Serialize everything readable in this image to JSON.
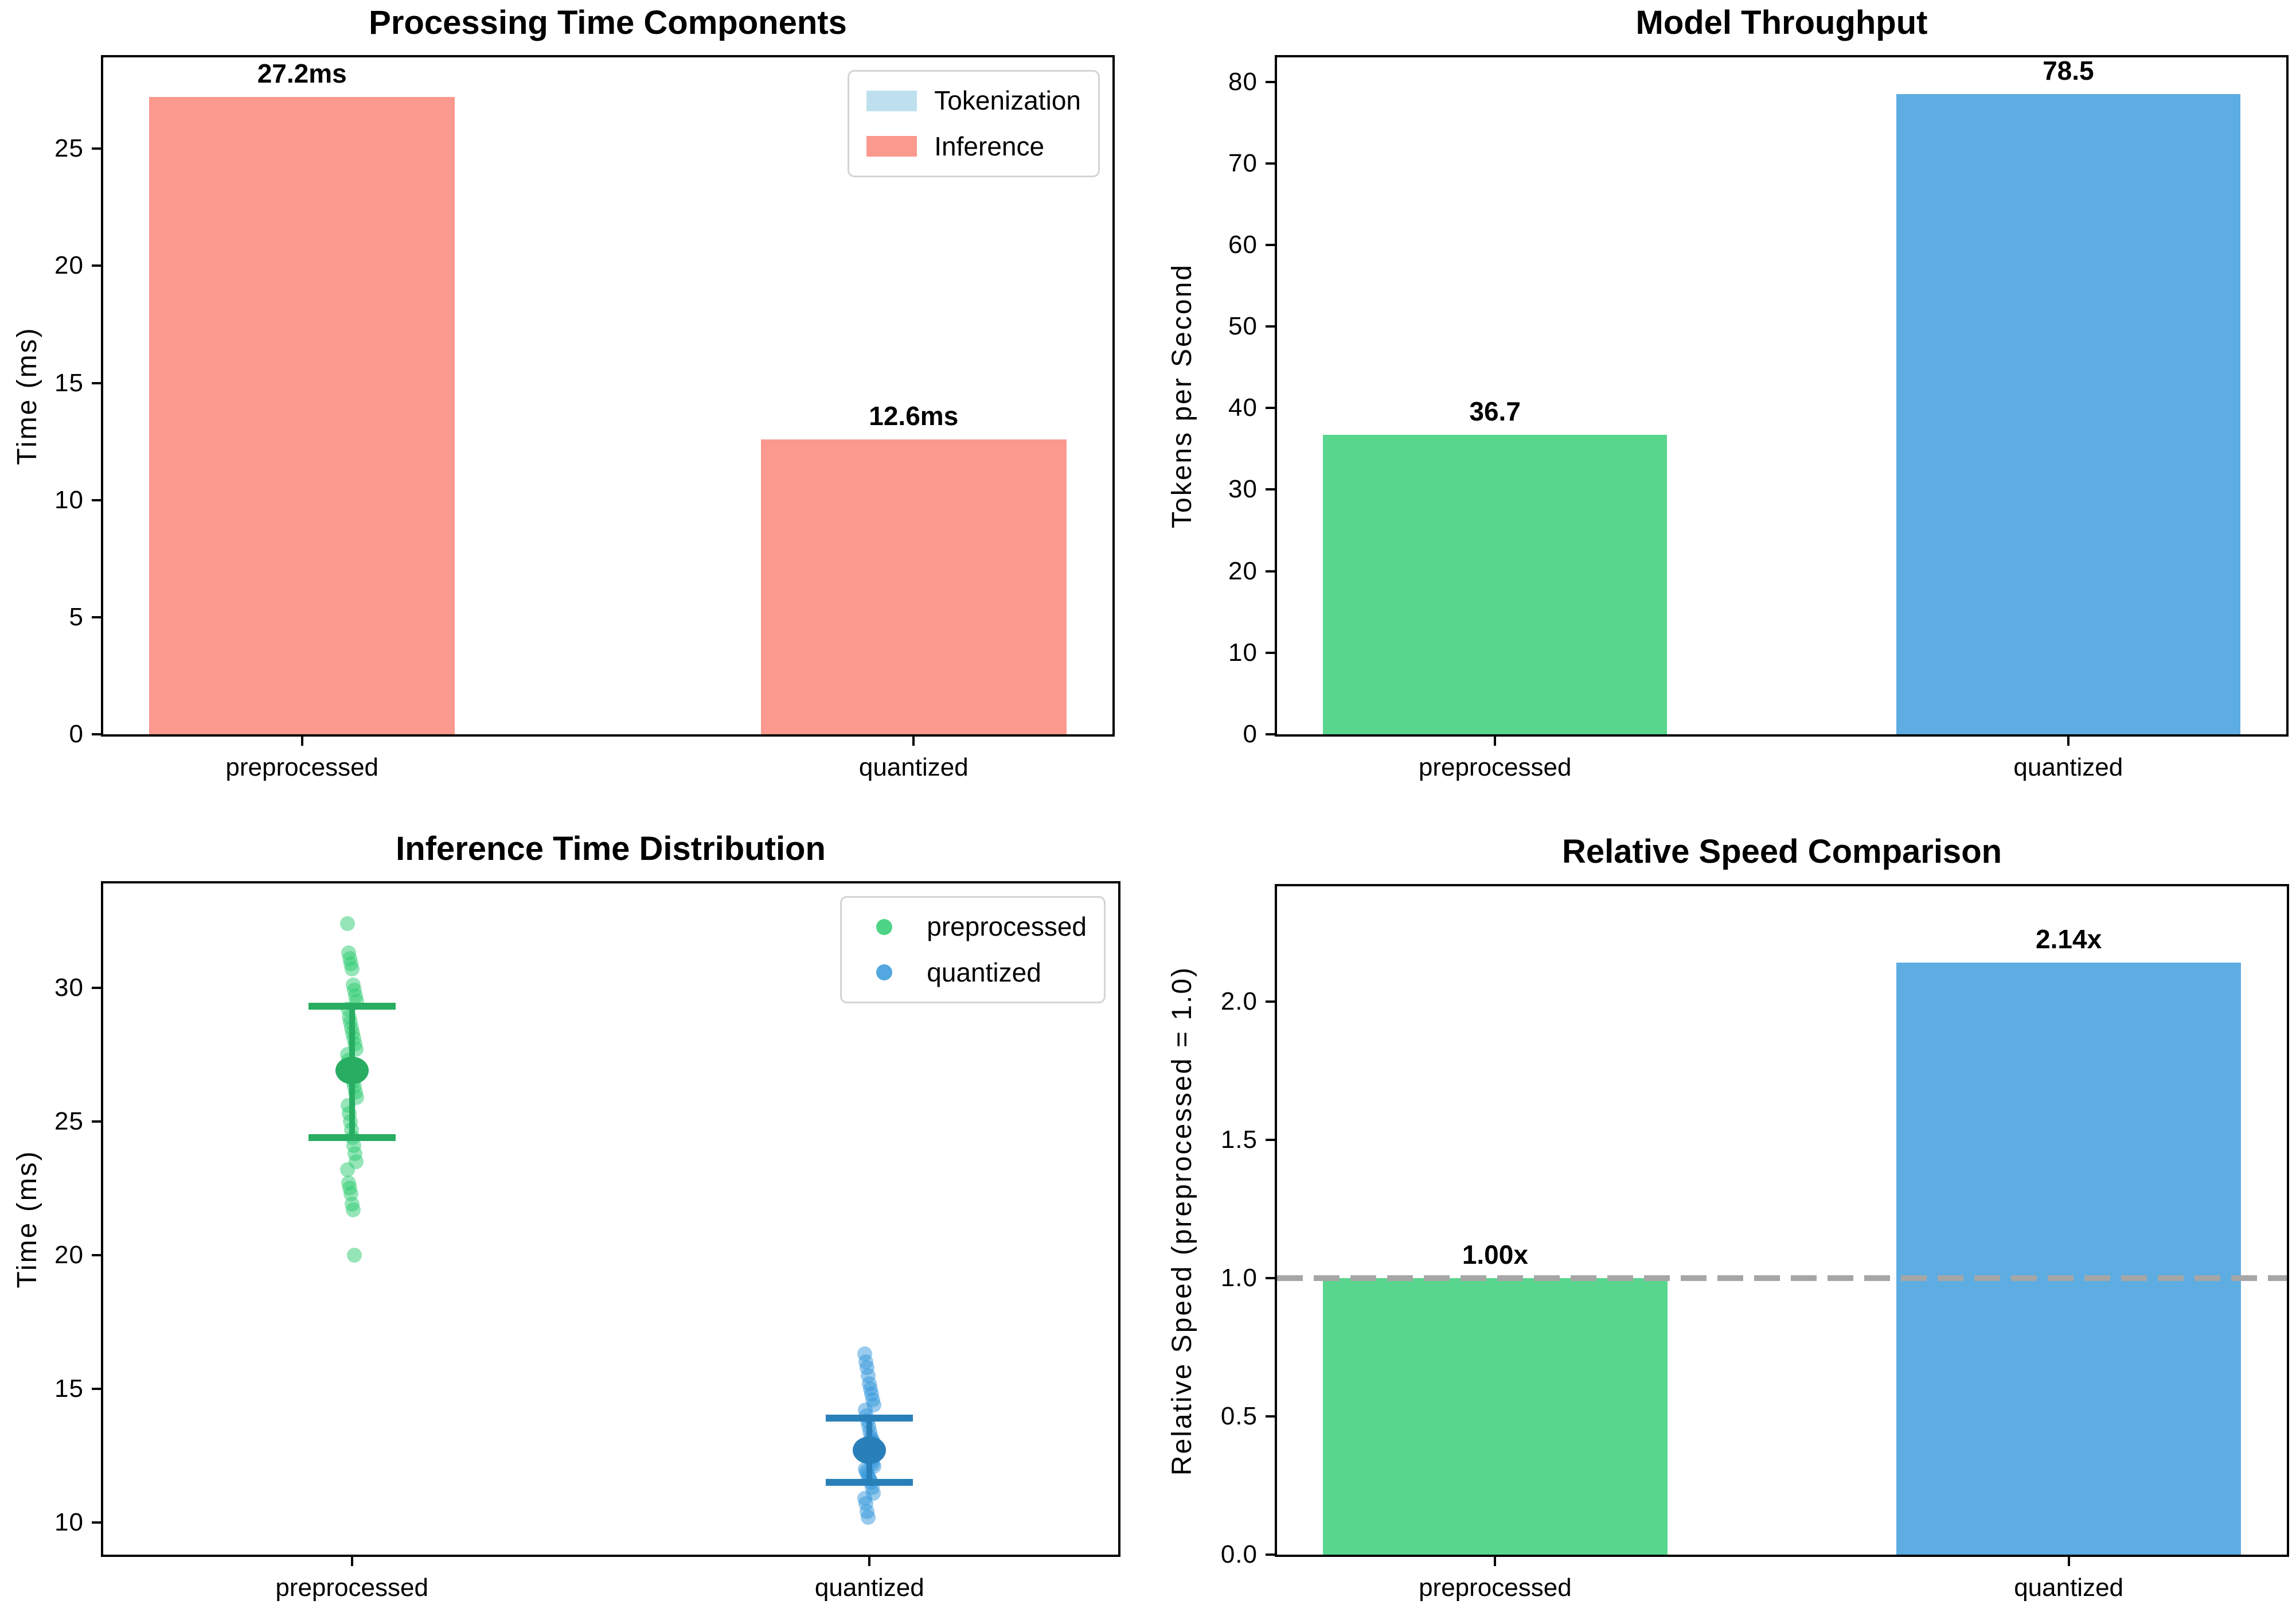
{
  "figure": {
    "background": "#ffffff"
  },
  "colors": {
    "salmon_bar": "#FB998E",
    "green_bar": "#58D68D",
    "blue_bar": "#5DADE2",
    "tokenization_patch": "#BEE0EE",
    "green_scatter": "#2ecc71",
    "green_dark": "#28ad63",
    "blue_scatter": "#3498db",
    "blue_dark": "#2980b9",
    "baseline_gray": "#a6a6a6",
    "spine": "#000000"
  },
  "chart_data": [
    {
      "type": "bar",
      "title": "Processing Time Components",
      "ylabel": "Time (ms)",
      "categories": [
        "preprocessed",
        "quantized"
      ],
      "values": [
        27.2,
        12.6
      ],
      "bar_labels": [
        "27.2ms",
        "12.6ms"
      ],
      "bar_colors": [
        "#FB998E",
        "#FB998E"
      ],
      "series": [
        {
          "name": "Tokenization",
          "color": "#BEE0EE",
          "values": [
            0,
            0
          ]
        },
        {
          "name": "Inference",
          "color": "#FB998E",
          "values": [
            27.2,
            12.6
          ]
        }
      ],
      "ytick_values": [
        0,
        5,
        10,
        15,
        20,
        25
      ],
      "ytick_labels": [
        "0",
        "5",
        "10",
        "15",
        "20",
        "25"
      ],
      "ylim": [
        0,
        28.9
      ],
      "cat_fracs": [
        0.197,
        0.803
      ],
      "bar_frac": 0.303,
      "grid": false,
      "legend": {
        "position": "upper right",
        "marker": "patch",
        "entries": [
          {
            "label": "Tokenization",
            "color": "#BEE0EE"
          },
          {
            "label": "Inference",
            "color": "#FB998E"
          }
        ]
      }
    },
    {
      "type": "bar",
      "title": "Model Throughput",
      "ylabel": "Tokens per Second",
      "categories": [
        "preprocessed",
        "quantized"
      ],
      "values": [
        36.7,
        78.5
      ],
      "bar_labels": [
        "36.7",
        "78.5"
      ],
      "bar_colors": [
        "#58D68D",
        "#5DADE2"
      ],
      "ytick_values": [
        0,
        10,
        20,
        30,
        40,
        50,
        60,
        70,
        80
      ],
      "ytick_labels": [
        "0",
        "10",
        "20",
        "30",
        "40",
        "50",
        "60",
        "70",
        "80"
      ],
      "ylim": [
        0,
        83
      ],
      "cat_fracs": [
        0.216,
        0.784
      ],
      "bar_frac": 0.341,
      "grid": false
    },
    {
      "type": "scatter",
      "title": "Inference Time Distribution",
      "ylabel": "Time (ms)",
      "categories": [
        "preprocessed",
        "quantized"
      ],
      "ytick_values": [
        10,
        15,
        20,
        25,
        30
      ],
      "ytick_labels": [
        "10",
        "15",
        "20",
        "25",
        "30"
      ],
      "ylim": [
        8.8,
        33.9
      ],
      "cat_fracs": [
        0.245,
        0.755
      ],
      "grid": false,
      "series": [
        {
          "name": "preprocessed",
          "color": "#2ecc71",
          "dark_color": "#28ad63",
          "mean": 26.9,
          "err_low": 24.4,
          "err_high": 29.3,
          "points": [
            32.4,
            31.3,
            31.1,
            30.9,
            30.7,
            30.1,
            29.9,
            29.7,
            29.5,
            29.2,
            28.9,
            28.7,
            28.5,
            28.3,
            28.1,
            27.9,
            27.7,
            27.5,
            27.3,
            27.1,
            26.9,
            26.7,
            26.5,
            26.3,
            26.1,
            25.9,
            25.6,
            25.3,
            25.0,
            24.7,
            24.4,
            24.1,
            23.8,
            23.5,
            23.2,
            22.7,
            22.5,
            22.3,
            21.9,
            21.7,
            20.0
          ]
        },
        {
          "name": "quantized",
          "color": "#3498db",
          "dark_color": "#2980b9",
          "mean": 12.7,
          "err_low": 11.5,
          "err_high": 13.9,
          "points": [
            16.3,
            16.0,
            15.8,
            15.5,
            15.2,
            15.0,
            14.8,
            14.6,
            14.4,
            14.2,
            14.0,
            13.8,
            13.6,
            13.4,
            13.2,
            13.1,
            13.0,
            12.9,
            12.8,
            12.7,
            12.6,
            12.5,
            12.4,
            12.3,
            12.2,
            12.1,
            12.0,
            11.9,
            11.8,
            11.7,
            11.6,
            11.5,
            11.3,
            11.1,
            10.9,
            10.7,
            10.4,
            10.2
          ]
        }
      ],
      "legend": {
        "position": "upper right",
        "marker": "circle",
        "entries": [
          {
            "label": "preprocessed",
            "color": "#2ecc71"
          },
          {
            "label": "quantized",
            "color": "#3498db"
          }
        ]
      }
    },
    {
      "type": "bar",
      "title": "Relative Speed Comparison",
      "ylabel": "Relative Speed (preprocessed = 1.0)",
      "categories": [
        "preprocessed",
        "quantized"
      ],
      "values": [
        1.0,
        2.14
      ],
      "bar_labels": [
        "1.00x",
        "2.14x"
      ],
      "bar_colors": [
        "#58D68D",
        "#5DADE2"
      ],
      "ytick_values": [
        0,
        0.5,
        1.0,
        1.5,
        2.0
      ],
      "ytick_labels": [
        "0.0",
        "0.5",
        "1.0",
        "1.5",
        "2.0"
      ],
      "ylim": [
        0,
        2.416
      ],
      "cat_fracs": [
        0.216,
        0.784
      ],
      "bar_frac": 0.341,
      "grid": false,
      "hline": {
        "value": 1.0,
        "color": "#a6a6a6",
        "style": "dashed"
      }
    }
  ]
}
